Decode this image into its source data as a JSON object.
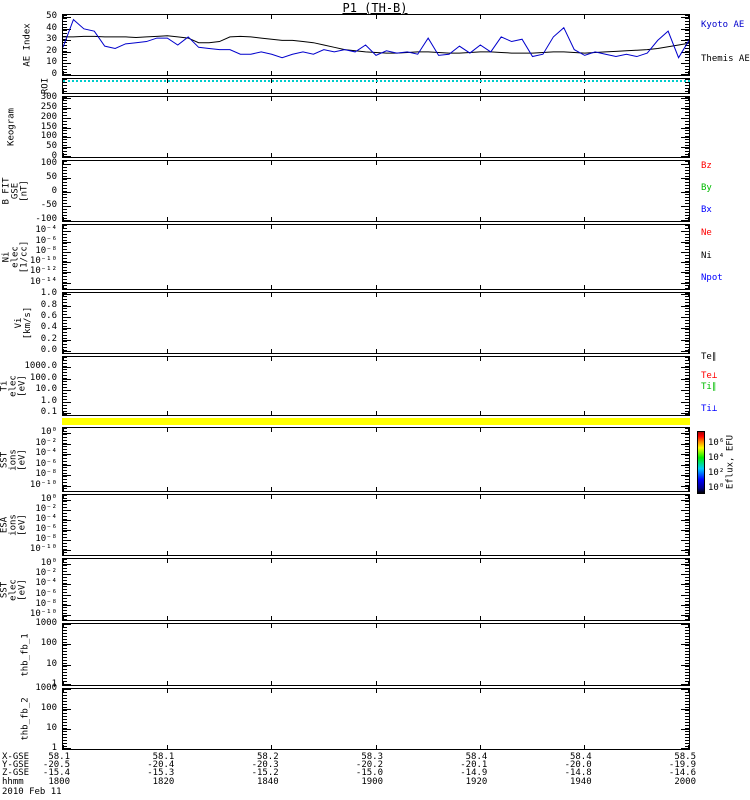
{
  "title": "P1 (TH-B)",
  "colors": {
    "kyoto_blue": "#0000cc",
    "black": "#000000",
    "red": "#ff0000",
    "green": "#00bb00",
    "blue": "#0000ff",
    "roi_cyan": "#00cccc",
    "strip_yellow": "#ffff00"
  },
  "panels": [
    {
      "key": "ae",
      "ylabel": "AE Index",
      "yticks": [
        "50",
        "40",
        "30",
        "20",
        "10",
        "0"
      ],
      "legends": [
        {
          "text": "Kyoto AE",
          "color": "#0000cc"
        },
        {
          "text": "Themis AE",
          "color": "#000000"
        }
      ]
    },
    {
      "key": "roi",
      "ylabel": "ROI",
      "yticks": [],
      "legends": []
    },
    {
      "key": "keogram",
      "ylabel": "Keogram",
      "yticks": [
        "300",
        "250",
        "200",
        "150",
        "100",
        "50",
        "0"
      ],
      "legends": []
    },
    {
      "key": "bfit",
      "ylabel": "B FIT\nGSE\n[nT]",
      "yticks": [
        "100",
        "50",
        "0",
        "-50",
        "-100"
      ],
      "legends": [
        {
          "text": "Bz",
          "color": "#ff0000"
        },
        {
          "text": "By",
          "color": "#00bb00"
        },
        {
          "text": "Bx",
          "color": "#0000ff"
        }
      ]
    },
    {
      "key": "ni",
      "ylabel": "Ni\nelec\n[1/cc]",
      "yticks": [
        "10⁻⁴",
        "10⁻⁶",
        "10⁻⁸",
        "10⁻¹⁰",
        "10⁻¹²",
        "10⁻¹⁴"
      ],
      "legends": [
        {
          "text": "Ne",
          "color": "#ff0000"
        },
        {
          "text": "Ni",
          "color": "#000000"
        },
        {
          "text": "Npot",
          "color": "#0000ff"
        }
      ]
    },
    {
      "key": "vi",
      "ylabel": "Vi\n[km/s]",
      "yticks": [
        "1.0",
        "0.8",
        "0.6",
        "0.4",
        "0.2",
        "0.0"
      ],
      "legends": []
    },
    {
      "key": "ti",
      "ylabel": "Ti\nelec\n[eV]",
      "yticks": [
        "1000.0",
        "100.0",
        "10.0",
        "1.0",
        "0.1"
      ],
      "legends": [
        {
          "text": "Te∥",
          "color": "#000000"
        },
        {
          "text": "Te⊥",
          "color": "#ff0000"
        },
        {
          "text": "Ti∥",
          "color": "#00bb00"
        },
        {
          "text": "Ti⊥",
          "color": "#0000ff"
        }
      ]
    },
    {
      "key": "sst_ions",
      "ylabel": "SST\nions\n[eV]",
      "yticks": [
        "10⁰",
        "10⁻²",
        "10⁻⁴",
        "10⁻⁶",
        "10⁻⁸",
        "10⁻¹⁰"
      ],
      "legends": []
    },
    {
      "key": "esa",
      "ylabel": "ESA\nions\n[eV]",
      "yticks": [
        "10⁰",
        "10⁻²",
        "10⁻⁴",
        "10⁻⁶",
        "10⁻⁸",
        "10⁻¹⁰"
      ],
      "legends": []
    },
    {
      "key": "sst_elec",
      "ylabel": "SST\nelec\n[eV]",
      "yticks": [
        "10⁰",
        "10⁻²",
        "10⁻⁴",
        "10⁻⁶",
        "10⁻⁸",
        "10⁻¹⁰"
      ],
      "legends": []
    },
    {
      "key": "fb1",
      "ylabel": "thb_fb_1",
      "yticks": [
        "1000",
        "100",
        "10",
        "1"
      ],
      "legends": []
    },
    {
      "key": "fb2",
      "ylabel": "thb_fb_2",
      "yticks": [
        "1000",
        "100",
        "10",
        "1"
      ],
      "legends": []
    }
  ],
  "spectrogram_strip": {
    "color": "#ffff00"
  },
  "colorbar": {
    "ticks": [
      "10⁶",
      "10⁴",
      "10²",
      "10⁰"
    ],
    "label": "Eflux, EFU"
  },
  "xaxis": {
    "rows": [
      {
        "label": "X-GSE",
        "values": [
          "58.1",
          "58.1",
          "58.2",
          "58.3",
          "58.4",
          "58.4",
          "58.5"
        ]
      },
      {
        "label": "Y-GSE",
        "values": [
          "-20.5",
          "-20.4",
          "-20.3",
          "-20.2",
          "-20.1",
          "-20.0",
          "-19.9"
        ]
      },
      {
        "label": "Z-GSE",
        "values": [
          "-15.4",
          "-15.3",
          "-15.2",
          "-15.0",
          "-14.9",
          "-14.8",
          "-14.6"
        ]
      },
      {
        "label": "hhmm",
        "values": [
          "1800",
          "1820",
          "1840",
          "1900",
          "1920",
          "1940",
          "2000"
        ]
      }
    ],
    "date": "2010 Feb 11"
  },
  "chart_data": {
    "type": "line",
    "title": "P1 (TH-B)",
    "xlabel": "hhmm",
    "x_ticks_hhmm": [
      "1800",
      "1820",
      "1840",
      "1900",
      "1920",
      "1940",
      "2000"
    ],
    "date": "2010 Feb 11",
    "ae_index": {
      "ylabel": "AE Index",
      "ylim": [
        0,
        52
      ],
      "t_start_min": 0,
      "t_step_min": 2,
      "series": [
        {
          "name": "Themis AE",
          "color": "#000000",
          "values": [
            33,
            33,
            33.5,
            33.5,
            33,
            33,
            33,
            32.5,
            33,
            33.5,
            34,
            33,
            32,
            28,
            28,
            29,
            33,
            33.5,
            33,
            32,
            31,
            30,
            30,
            29,
            28,
            26,
            24,
            22,
            21,
            20,
            19.5,
            19,
            19,
            19.5,
            20,
            20,
            19.5,
            19,
            19,
            19.5,
            20,
            20,
            19.5,
            19,
            19,
            19,
            19.5,
            20,
            20,
            19.5,
            19,
            19.5,
            20,
            20.5,
            21,
            21.5,
            22,
            23,
            24.5,
            26,
            27.5
          ]
        },
        {
          "name": "Kyoto AE",
          "color": "#0000cc",
          "values": [
            24,
            48,
            40,
            38,
            25,
            23,
            27,
            28,
            29,
            32,
            32,
            26,
            33,
            24,
            23,
            22,
            22,
            18,
            18,
            20,
            18,
            15,
            18,
            20,
            18,
            22,
            20,
            22,
            20,
            26,
            17,
            21,
            19,
            20,
            18,
            32,
            17,
            18,
            25,
            19,
            26,
            20,
            33,
            29,
            31,
            16,
            18,
            33,
            41,
            22,
            17,
            20,
            18,
            16,
            18,
            16,
            19,
            30,
            38,
            15,
            30
          ]
        }
      ]
    },
    "empty_panels": [
      "ROI",
      "Keogram",
      "B FIT GSE [nT]",
      "Ni elec [1/cc]",
      "Vi [km/s]",
      "Ti elec [eV]",
      "SST ions [eV]",
      "ESA ions [eV]",
      "SST elec [eV]",
      "thb_fb_1",
      "thb_fb_2"
    ],
    "spectrogram_strip_value": "saturated yellow (top of SST ions panel), Eflux EFU colorbar range 10^0 - 10^6"
  }
}
